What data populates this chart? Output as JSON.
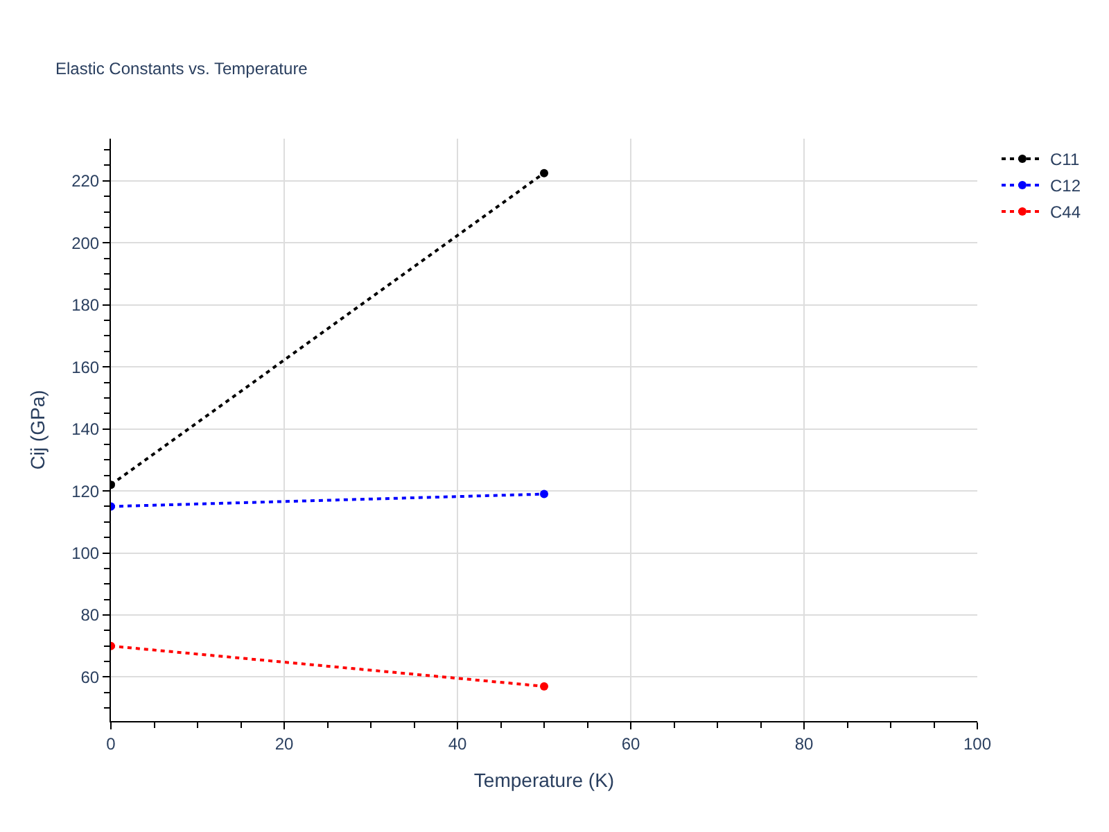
{
  "chart_data": {
    "type": "line",
    "title": "Elastic Constants vs. Temperature",
    "xlabel": "Temperature (K)",
    "ylabel": "Cij (GPa)",
    "x": [
      0,
      50
    ],
    "series": [
      {
        "name": "C11",
        "color": "#000000",
        "values": [
          122,
          222.5
        ]
      },
      {
        "name": "C12",
        "color": "#0000ff",
        "values": [
          115,
          119
        ]
      },
      {
        "name": "C44",
        "color": "#ff0000",
        "values": [
          70,
          57
        ]
      }
    ],
    "xlim": [
      0,
      100
    ],
    "xticks": [
      0,
      20,
      40,
      60,
      80,
      100
    ],
    "ylim": [
      45.8,
      233.6
    ],
    "yticks": [
      60,
      80,
      100,
      120,
      140,
      160,
      180,
      200,
      220
    ],
    "grid": true,
    "legend": "top right",
    "marker": "circle",
    "line_style": "dotted"
  }
}
